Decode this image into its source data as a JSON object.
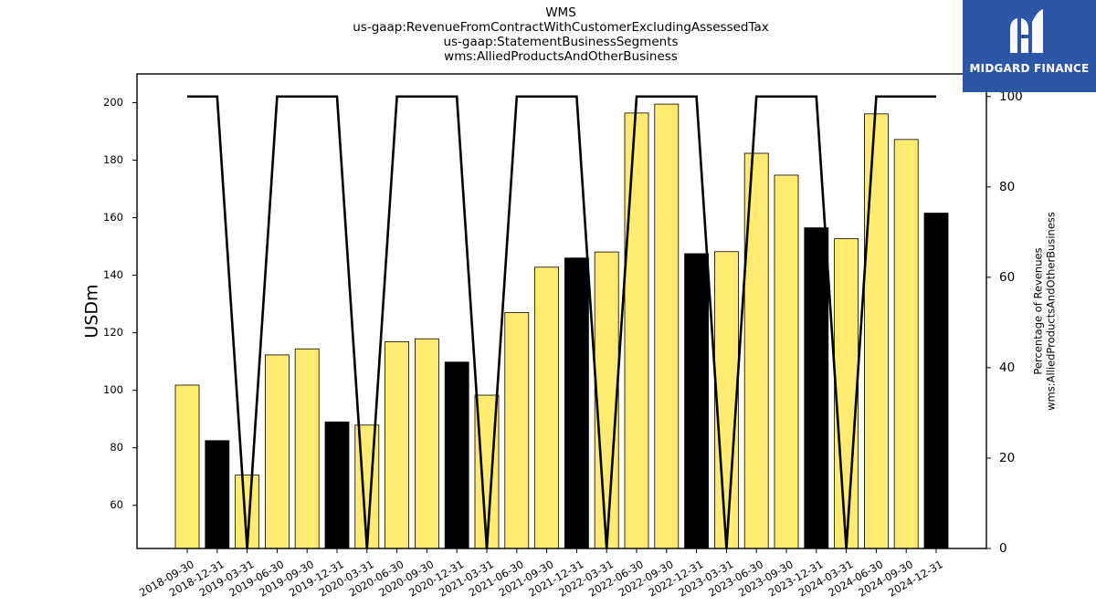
{
  "chart_data": {
    "type": "bar",
    "title_lines": [
      "WMS",
      "us-gaap:RevenueFromContractWithCustomerExcludingAssessedTax",
      "us-gaap:StatementBusinessSegments",
      "wms:AlliedProductsAndOtherBusiness"
    ],
    "ylabel": "USDm",
    "ylabel2_lines": [
      "Percentage of Revenues",
      "wms:AlliedProductsAndOtherBusiness"
    ],
    "ylim": [
      45,
      210
    ],
    "y_ticks": [
      60,
      80,
      100,
      120,
      140,
      160,
      180,
      200
    ],
    "y2lim": [
      0,
      105
    ],
    "y2_ticks": [
      0,
      20,
      40,
      60,
      80,
      100
    ],
    "categories": [
      "2018-09-30",
      "2018-12-31",
      "2019-03-31",
      "2019-06-30",
      "2019-09-30",
      "2019-12-31",
      "2020-03-31",
      "2020-06-30",
      "2020-09-30",
      "2020-12-31",
      "2021-03-31",
      "2021-06-30",
      "2021-09-30",
      "2021-12-31",
      "2022-03-31",
      "2022-06-30",
      "2022-09-30",
      "2022-12-31",
      "2023-03-31",
      "2023-06-30",
      "2023-09-30",
      "2023-12-31",
      "2024-03-31",
      "2024-06-30",
      "2024-09-30",
      "2024-12-31"
    ],
    "values": [
      101.8,
      82.5,
      70.5,
      112.3,
      114.4,
      89.0,
      87.9,
      116.9,
      117.9,
      109.8,
      98.3,
      127.0,
      142.8,
      146.0,
      148.1,
      196.4,
      199.5,
      147.5,
      148.2,
      182.4,
      174.8,
      156.5,
      152.7,
      196.1,
      187.2,
      161.6
    ],
    "bar_colors": [
      "#ffeb70",
      "#000000",
      "#ffeb70",
      "#ffeb70",
      "#ffeb70",
      "#000000",
      "#ffeb70",
      "#ffeb70",
      "#ffeb70",
      "#000000",
      "#ffeb70",
      "#ffeb70",
      "#ffeb70",
      "#000000",
      "#ffeb70",
      "#ffeb70",
      "#ffeb70",
      "#000000",
      "#ffeb70",
      "#ffeb70",
      "#ffeb70",
      "#000000",
      "#ffeb70",
      "#ffeb70",
      "#ffeb70",
      "#000000"
    ],
    "percentage": [
      100,
      100,
      0,
      100,
      100,
      100,
      0,
      100,
      100,
      100,
      0,
      100,
      100,
      100,
      0,
      100,
      100,
      100,
      0,
      100,
      100,
      100,
      0,
      100,
      100,
      100
    ],
    "line_color": "#000000",
    "grid": false
  },
  "logo": {
    "text": "MIDGARD FINANCE",
    "background": "#2b57a6"
  }
}
